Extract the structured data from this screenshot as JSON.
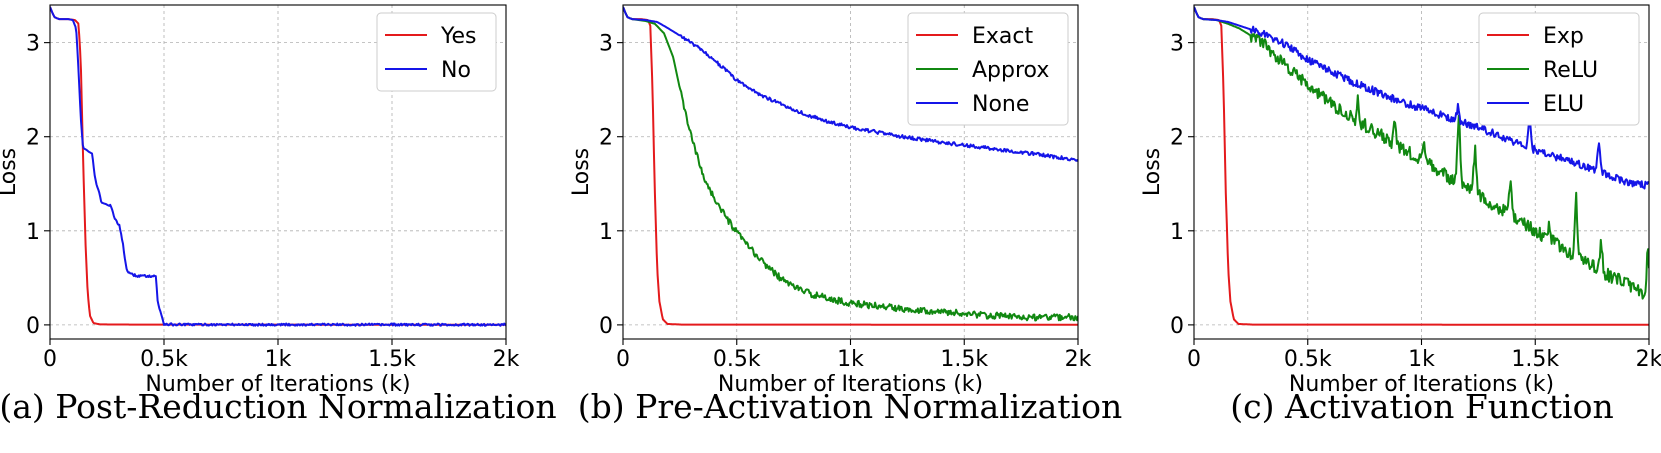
{
  "chart_data": [
    {
      "type": "line",
      "caption": "(a) Post-Reduction Normalization",
      "xlabel": "Number of Iterations (k)",
      "ylabel": "Loss",
      "xlim": [
        0,
        2000
      ],
      "ylim": [
        -0.15,
        3.4
      ],
      "x_ticks": [
        0,
        500,
        1000,
        1500,
        2000
      ],
      "x_tick_labels": [
        "0",
        "0.5k",
        "1k",
        "1.5k",
        "2k"
      ],
      "y_ticks": [
        0,
        1,
        2,
        3
      ],
      "y_tick_labels": [
        "0",
        "1",
        "2",
        "3"
      ],
      "grid": true,
      "legend_position": "top-right",
      "series": [
        {
          "name": "Yes",
          "color": "#e41a1c",
          "points": [
            [
              0,
              3.38
            ],
            [
              10,
              3.32
            ],
            [
              20,
              3.27
            ],
            [
              40,
              3.25
            ],
            [
              80,
              3.25
            ],
            [
              110,
              3.24
            ],
            [
              125,
              3.2
            ],
            [
              135,
              2.8
            ],
            [
              145,
              1.8
            ],
            [
              155,
              0.9
            ],
            [
              165,
              0.35
            ],
            [
              175,
              0.1
            ],
            [
              190,
              0.02
            ],
            [
              220,
              0.005
            ],
            [
              400,
              0.003
            ],
            [
              2000,
              0.002
            ]
          ],
          "noise": 0
        },
        {
          "name": "No",
          "color": "#1515e8",
          "points": [
            [
              0,
              3.38
            ],
            [
              10,
              3.32
            ],
            [
              20,
              3.27
            ],
            [
              40,
              3.25
            ],
            [
              80,
              3.25
            ],
            [
              100,
              3.24
            ],
            [
              115,
              3.15
            ],
            [
              125,
              2.7
            ],
            [
              135,
              2.2
            ],
            [
              145,
              1.88
            ],
            [
              160,
              1.86
            ],
            [
              170,
              1.84
            ],
            [
              185,
              1.82
            ],
            [
              195,
              1.6
            ],
            [
              205,
              1.48
            ],
            [
              215,
              1.42
            ],
            [
              225,
              1.3
            ],
            [
              250,
              1.28
            ],
            [
              265,
              1.27
            ],
            [
              275,
              1.2
            ],
            [
              285,
              1.12
            ],
            [
              305,
              1.06
            ],
            [
              320,
              0.85
            ],
            [
              335,
              0.6
            ],
            [
              350,
              0.54
            ],
            [
              385,
              0.52
            ],
            [
              445,
              0.52
            ],
            [
              465,
              0.52
            ],
            [
              472,
              0.25
            ],
            [
              480,
              0.17
            ],
            [
              492,
              0.08
            ],
            [
              500,
              0.01
            ],
            [
              540,
              0.003
            ],
            [
              2000,
              0.002
            ]
          ],
          "noise": 0.012
        }
      ]
    },
    {
      "type": "line",
      "caption": "(b) Pre-Activation Normalization",
      "xlabel": "Number of Iterations (k)",
      "ylabel": "Loss",
      "xlim": [
        0,
        2000
      ],
      "ylim": [
        -0.15,
        3.4
      ],
      "x_ticks": [
        0,
        500,
        1000,
        1500,
        2000
      ],
      "x_tick_labels": [
        "0",
        "0.5k",
        "1k",
        "1.5k",
        "2k"
      ],
      "y_ticks": [
        0,
        1,
        2,
        3
      ],
      "y_tick_labels": [
        "0",
        "1",
        "2",
        "3"
      ],
      "grid": true,
      "legend_position": "top-right",
      "series": [
        {
          "name": "Exact",
          "color": "#e41a1c",
          "points": [
            [
              0,
              3.38
            ],
            [
              10,
              3.32
            ],
            [
              20,
              3.27
            ],
            [
              40,
              3.25
            ],
            [
              80,
              3.25
            ],
            [
              110,
              3.24
            ],
            [
              120,
              3.18
            ],
            [
              130,
              2.5
            ],
            [
              140,
              1.4
            ],
            [
              150,
              0.6
            ],
            [
              160,
              0.25
            ],
            [
              175,
              0.06
            ],
            [
              195,
              0.01
            ],
            [
              260,
              0.003
            ],
            [
              2000,
              0.002
            ]
          ],
          "noise": 0
        },
        {
          "name": "Approx",
          "color": "#118811",
          "points": [
            [
              0,
              3.38
            ],
            [
              10,
              3.32
            ],
            [
              20,
              3.27
            ],
            [
              40,
              3.25
            ],
            [
              100,
              3.23
            ],
            [
              140,
              3.2
            ],
            [
              180,
              3.1
            ],
            [
              220,
              2.85
            ],
            [
              260,
              2.4
            ],
            [
              300,
              2.0
            ],
            [
              350,
              1.6
            ],
            [
              400,
              1.35
            ],
            [
              450,
              1.15
            ],
            [
              500,
              0.98
            ],
            [
              600,
              0.7
            ],
            [
              700,
              0.48
            ],
            [
              800,
              0.35
            ],
            [
              900,
              0.28
            ],
            [
              1000,
              0.23
            ],
            [
              1200,
              0.18
            ],
            [
              1400,
              0.14
            ],
            [
              1600,
              0.1
            ],
            [
              1800,
              0.08
            ],
            [
              2000,
              0.08
            ]
          ],
          "noise": 0.035
        },
        {
          "name": "None",
          "color": "#1515e8",
          "points": [
            [
              0,
              3.38
            ],
            [
              10,
              3.32
            ],
            [
              20,
              3.27
            ],
            [
              40,
              3.25
            ],
            [
              100,
              3.24
            ],
            [
              150,
              3.22
            ],
            [
              200,
              3.15
            ],
            [
              300,
              3.0
            ],
            [
              400,
              2.82
            ],
            [
              500,
              2.6
            ],
            [
              600,
              2.45
            ],
            [
              700,
              2.34
            ],
            [
              800,
              2.24
            ],
            [
              900,
              2.16
            ],
            [
              1000,
              2.1
            ],
            [
              1200,
              2.01
            ],
            [
              1400,
              1.94
            ],
            [
              1600,
              1.88
            ],
            [
              1800,
              1.82
            ],
            [
              2000,
              1.75
            ]
          ],
          "noise": 0.018
        }
      ]
    },
    {
      "type": "line",
      "caption": "(c) Activation Function",
      "xlabel": "Number of Iterations (k)",
      "ylabel": "Loss",
      "xlim": [
        0,
        2000
      ],
      "ylim": [
        -0.15,
        3.4
      ],
      "x_ticks": [
        0,
        500,
        1000,
        1500,
        2000
      ],
      "x_tick_labels": [
        "0",
        "0.5k",
        "1k",
        "1.5k",
        "2k"
      ],
      "y_ticks": [
        0,
        1,
        2,
        3
      ],
      "y_tick_labels": [
        "0",
        "1",
        "2",
        "3"
      ],
      "grid": true,
      "legend_position": "top-right",
      "series": [
        {
          "name": "Exp",
          "color": "#e41a1c",
          "points": [
            [
              0,
              3.38
            ],
            [
              10,
              3.32
            ],
            [
              20,
              3.27
            ],
            [
              40,
              3.25
            ],
            [
              80,
              3.25
            ],
            [
              110,
              3.24
            ],
            [
              120,
              3.18
            ],
            [
              130,
              2.5
            ],
            [
              140,
              1.4
            ],
            [
              150,
              0.6
            ],
            [
              160,
              0.25
            ],
            [
              175,
              0.06
            ],
            [
              195,
              0.01
            ],
            [
              260,
              0.003
            ],
            [
              2000,
              0.002
            ]
          ],
          "noise": 0
        },
        {
          "name": "ReLU",
          "color": "#118811",
          "points": [
            [
              0,
              3.38
            ],
            [
              10,
              3.32
            ],
            [
              20,
              3.27
            ],
            [
              40,
              3.25
            ],
            [
              100,
              3.24
            ],
            [
              150,
              3.2
            ],
            [
              200,
              3.15
            ],
            [
              300,
              3.0
            ],
            [
              400,
              2.75
            ],
            [
              500,
              2.55
            ],
            [
              600,
              2.35
            ],
            [
              700,
              2.2
            ],
            [
              800,
              2.05
            ],
            [
              900,
              1.9
            ],
            [
              1000,
              1.75
            ],
            [
              1100,
              1.6
            ],
            [
              1200,
              1.45
            ],
            [
              1300,
              1.3
            ],
            [
              1400,
              1.15
            ],
            [
              1500,
              1.0
            ],
            [
              1600,
              0.85
            ],
            [
              1700,
              0.7
            ],
            [
              1800,
              0.55
            ],
            [
              1900,
              0.45
            ],
            [
              2000,
              0.3
            ]
          ],
          "noise": 0.07,
          "spikes": [
            [
              720,
              2.42
            ],
            [
              880,
              2.2
            ],
            [
              1010,
              2.0
            ],
            [
              1155,
              1.62
            ],
            [
              1165,
              2.25
            ],
            [
              1235,
              1.92
            ],
            [
              1390,
              1.55
            ],
            [
              1560,
              1.05
            ],
            [
              1680,
              1.38
            ],
            [
              1790,
              0.9
            ],
            [
              1995,
              0.85
            ]
          ]
        },
        {
          "name": "ELU",
          "color": "#1515e8",
          "points": [
            [
              0,
              3.38
            ],
            [
              10,
              3.32
            ],
            [
              20,
              3.27
            ],
            [
              40,
              3.25
            ],
            [
              100,
              3.24
            ],
            [
              150,
              3.22
            ],
            [
              200,
              3.18
            ],
            [
              300,
              3.1
            ],
            [
              400,
              2.98
            ],
            [
              500,
              2.82
            ],
            [
              600,
              2.7
            ],
            [
              700,
              2.58
            ],
            [
              800,
              2.48
            ],
            [
              900,
              2.38
            ],
            [
              1000,
              2.3
            ],
            [
              1100,
              2.22
            ],
            [
              1200,
              2.14
            ],
            [
              1300,
              2.05
            ],
            [
              1400,
              1.95
            ],
            [
              1500,
              1.86
            ],
            [
              1600,
              1.78
            ],
            [
              1700,
              1.7
            ],
            [
              1800,
              1.62
            ],
            [
              1900,
              1.52
            ],
            [
              2000,
              1.48
            ]
          ],
          "noise": 0.04,
          "spikes": [
            [
              1160,
              2.32
            ],
            [
              1475,
              2.28
            ],
            [
              1780,
              1.95
            ]
          ]
        }
      ]
    }
  ]
}
